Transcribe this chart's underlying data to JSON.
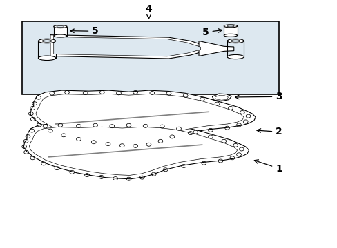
{
  "bg_color": "#ffffff",
  "box_bg": "#dde8f0",
  "line_color": "#000000",
  "label_color": "#000000",
  "fig_width": 4.89,
  "fig_height": 3.6,
  "dpi": 100
}
